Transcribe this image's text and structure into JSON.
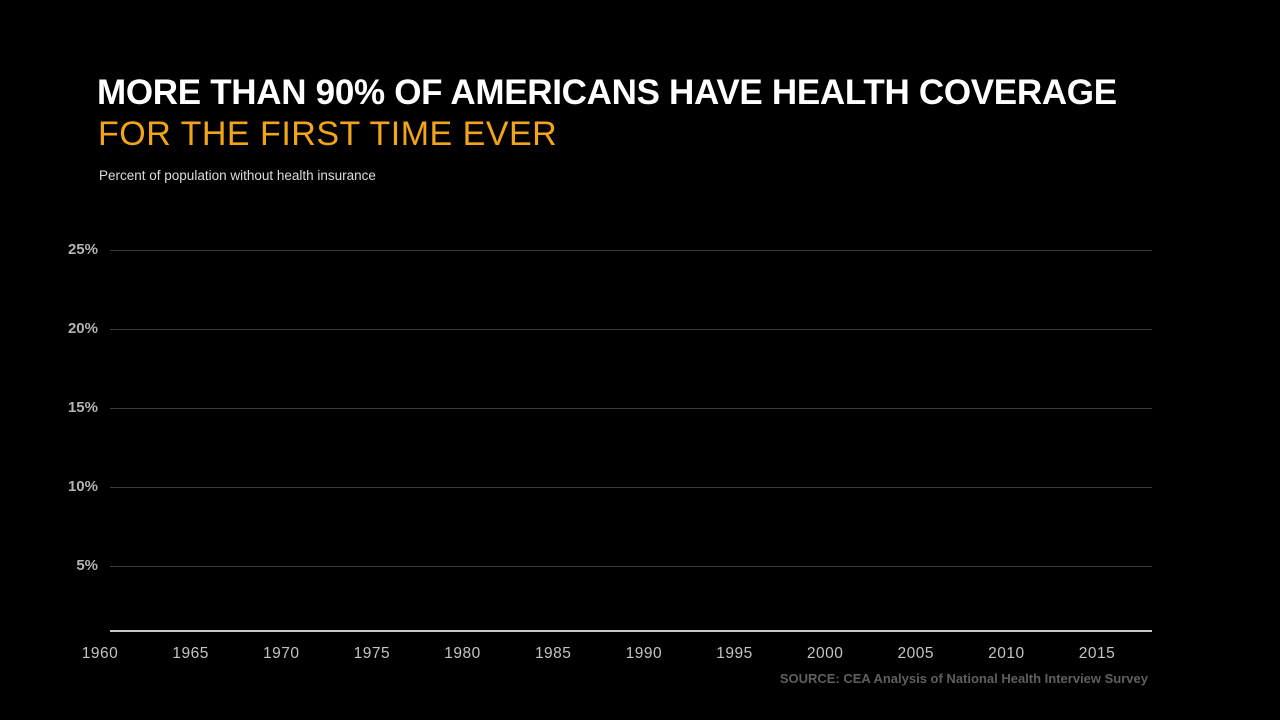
{
  "header": {
    "title_line1": "MORE THAN 90% OF AMERICANS HAVE HEALTH COVERAGE",
    "title_line2": "FOR THE FIRST TIME EVER",
    "subtitle": "Percent of population without health insurance"
  },
  "footer": {
    "source": "SOURCE: CEA Analysis of National Health Interview Survey"
  },
  "colors": {
    "background": "#000000",
    "title": "#ffffff",
    "accent": "#F2A51A",
    "gridline": "#3a3a3a",
    "axis_line": "#c9c9c9",
    "y_tick_label": "#b3b3b3",
    "x_tick_label": "#c4c4c4",
    "source": "#5f5f5f"
  },
  "chart_data": {
    "type": "line",
    "title": "Percent of population without health insurance",
    "xlabel": "",
    "ylabel": "",
    "x_tick_labels": [
      "1960",
      "1965",
      "1970",
      "1975",
      "1980",
      "1985",
      "1990",
      "1995",
      "2000",
      "2005",
      "2010",
      "2015"
    ],
    "y_tick_labels": [
      "25%",
      "20%",
      "15%",
      "10%",
      "5%"
    ],
    "y_tick_values": [
      25,
      20,
      15,
      10,
      5
    ],
    "xlim": [
      1960,
      2018
    ],
    "ylim": [
      0,
      25
    ],
    "grid": "horizontal gridlines only",
    "legend_position": "none",
    "series": []
  }
}
